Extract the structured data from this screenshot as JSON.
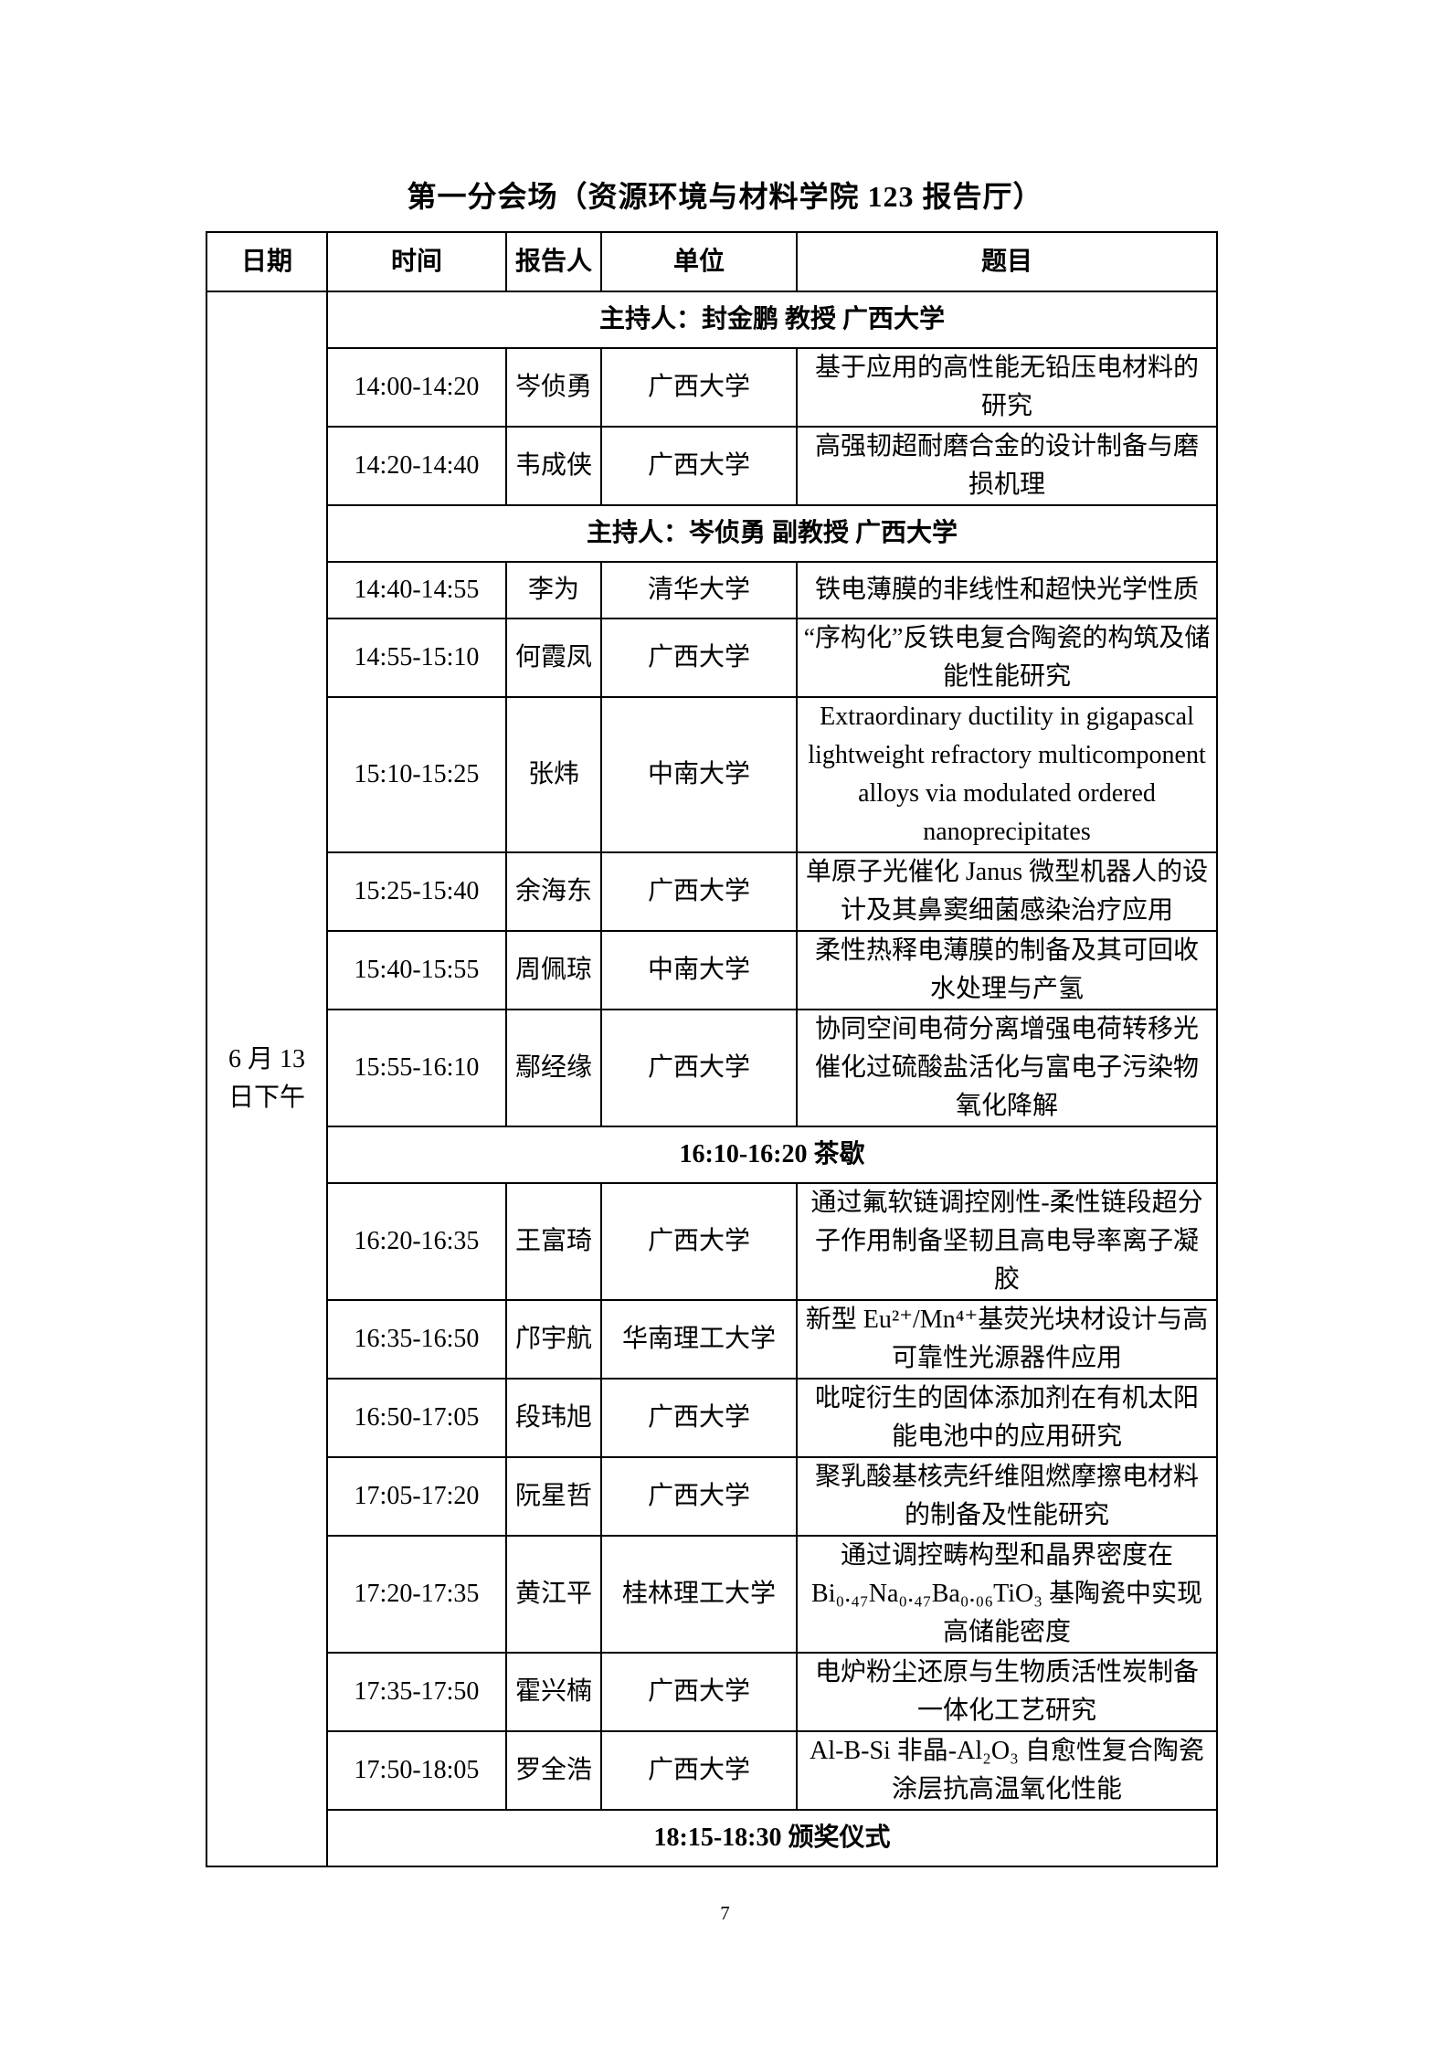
{
  "page": {
    "title": "第一分会场（资源环境与材料学院 123 报告厅）",
    "page_number": "7"
  },
  "table": {
    "headers": [
      "日期",
      "时间",
      "报告人",
      "单位",
      "题目"
    ],
    "date_lines": [
      "6 月 13",
      "日下午"
    ],
    "rows": [
      {
        "type": "moderator",
        "text": "主持人：封金鹏 教授 广西大学"
      },
      {
        "type": "talk",
        "time": "14:00-14:20",
        "speaker": "岑侦勇",
        "affiliation": "广西大学",
        "title": "基于应用的高性能无铅压电材料的研究"
      },
      {
        "type": "talk",
        "time": "14:20-14:40",
        "speaker": "韦成侠",
        "affiliation": "广西大学",
        "title": "高强韧超耐磨合金的设计制备与磨损机理"
      },
      {
        "type": "moderator",
        "text": "主持人：岑侦勇 副教授 广西大学"
      },
      {
        "type": "talk",
        "time": "14:40-14:55",
        "speaker": "李为",
        "affiliation": "清华大学",
        "title": "铁电薄膜的非线性和超快光学性质"
      },
      {
        "type": "talk",
        "time": "14:55-15:10",
        "speaker": "何霞凤",
        "affiliation": "广西大学",
        "title": "“序构化”反铁电复合陶瓷的构筑及储能性能研究"
      },
      {
        "type": "talk",
        "time": "15:10-15:25",
        "speaker": "张炜",
        "affiliation": "中南大学",
        "title": "Extraordinary ductility in gigapascal lightweight refractory multicomponent alloys via modulated ordered nanoprecipitates"
      },
      {
        "type": "talk",
        "time": "15:25-15:40",
        "speaker": "余海东",
        "affiliation": "广西大学",
        "title": "单原子光催化 Janus 微型机器人的设计及其鼻窦细菌感染治疗应用"
      },
      {
        "type": "talk",
        "time": "15:40-15:55",
        "speaker": "周佩琼",
        "affiliation": "中南大学",
        "title": "柔性热释电薄膜的制备及其可回收水处理与产氢"
      },
      {
        "type": "talk",
        "time": "15:55-16:10",
        "speaker": "鄢经缘",
        "affiliation": "广西大学",
        "title": "协同空间电荷分离增强电荷转移光催化过硫酸盐活化与富电子污染物氧化降解"
      },
      {
        "type": "break",
        "text": "16:10-16:20 茶歇"
      },
      {
        "type": "talk",
        "time": "16:20-16:35",
        "speaker": "王富琦",
        "affiliation": "广西大学",
        "title": "通过氟软链调控刚性-柔性链段超分子作用制备坚韧且高电导率离子凝胶"
      },
      {
        "type": "talk",
        "time": "16:35-16:50",
        "speaker": "邝宇航",
        "affiliation": "华南理工大学",
        "title": "新型 Eu²⁺/Mn⁴⁺基荧光块材设计与高可靠性光源器件应用"
      },
      {
        "type": "talk",
        "time": "16:50-17:05",
        "speaker": "段玮旭",
        "affiliation": "广西大学",
        "title": "吡啶衍生的固体添加剂在有机太阳能电池中的应用研究"
      },
      {
        "type": "talk",
        "time": "17:05-17:20",
        "speaker": "阮星哲",
        "affiliation": "广西大学",
        "title": "聚乳酸基核壳纤维阻燃摩擦电材料的制备及性能研究"
      },
      {
        "type": "talk",
        "time": "17:20-17:35",
        "speaker": "黄江平",
        "affiliation": "桂林理工大学",
        "title": "通过调控畴构型和晶界密度在 Bi₀.₄₇Na₀.₄₇Ba₀.₀₆TiO₃ 基陶瓷中实现高储能密度"
      },
      {
        "type": "talk",
        "time": "17:35-17:50",
        "speaker": "霍兴楠",
        "affiliation": "广西大学",
        "title": "电炉粉尘还原与生物质活性炭制备一体化工艺研究"
      },
      {
        "type": "talk",
        "time": "17:50-18:05",
        "speaker": "罗全浩",
        "affiliation": "广西大学",
        "title": "Al-B-Si 非晶-Al₂O₃ 自愈性复合陶瓷涂层抗高温氧化性能"
      },
      {
        "type": "ceremony",
        "text": "18:15-18:30 颁奖仪式"
      }
    ]
  }
}
